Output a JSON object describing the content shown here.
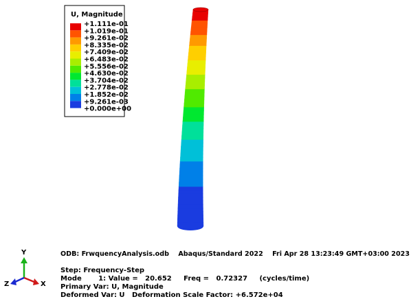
{
  "legend": {
    "title": "U, Magnitude",
    "labels": [
      "+1.111e-01",
      "+1.019e-01",
      "+9.261e-02",
      "+8.335e-02",
      "+7.409e-02",
      "+6.483e-02",
      "+5.556e-02",
      "+4.630e-02",
      "+3.704e-02",
      "+2.778e-02",
      "+1.852e-02",
      "+9.261e-03",
      "+0.000e+00"
    ],
    "colors": [
      "#e80000",
      "#ff5400",
      "#ff9a00",
      "#ffcf00",
      "#e8ee00",
      "#a8ee00",
      "#50ea00",
      "#00e830",
      "#00e09a",
      "#00c0d8",
      "#0080e8",
      "#1a3ce0"
    ]
  },
  "triad": {
    "y": "Y",
    "z": "Z",
    "x": "X"
  },
  "info": {
    "odb": "ODB: FrwquencyAnalysis.odb    Abaqus/Standard 2022    Fri Apr 28 13:23:49 GMT+03:00 2023",
    "step": "Step: Frequency-Step",
    "mode": "Mode       1: Value =   20.652     Freq =   0.72327     (cycles/time)",
    "primary": "Primary Var: U, Magnitude",
    "deformed": "Deformed Var: U   Deformation Scale Factor: +6.572e+04"
  }
}
